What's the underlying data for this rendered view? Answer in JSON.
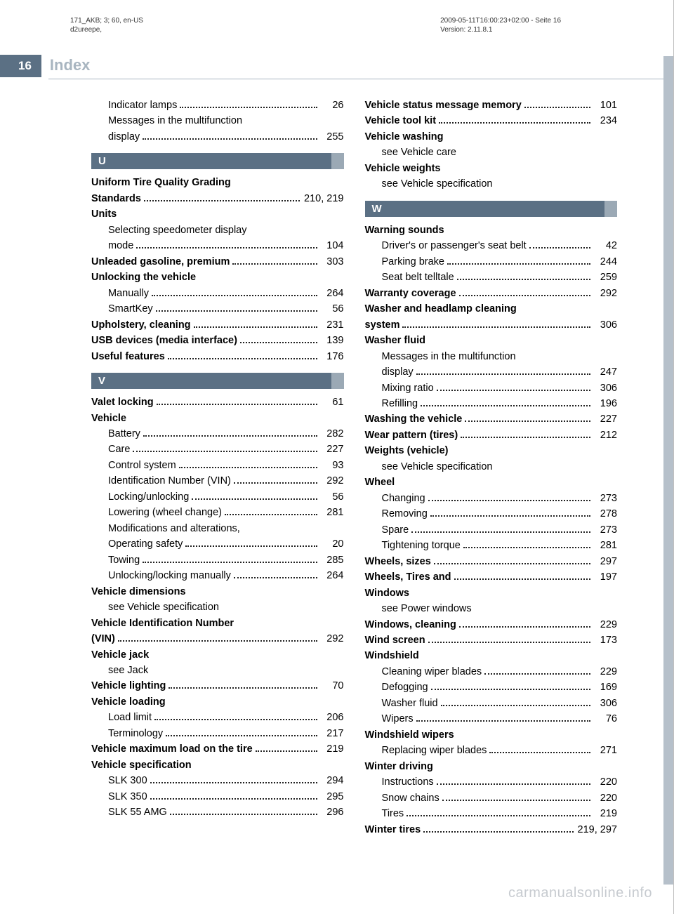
{
  "meta": {
    "left": "171_AKB; 3; 60, en-US\nd2ureepe,",
    "right": "2009-05-11T16:00:23+02:00 - Seite 16\nVersion: 2.11.8.1"
  },
  "pageNumber": "16",
  "pageTitle": "Index",
  "watermark": "carmanualsonline.info",
  "colors": {
    "barDark": "#5b7084",
    "barLight": "#9ba9b5",
    "titleGrey": "#a8b5c0",
    "tabGrey": "#b6c0ca"
  },
  "leftCol": [
    {
      "type": "entry",
      "sub": true,
      "label": "Indicator lamps",
      "page": "26"
    },
    {
      "type": "text",
      "sub": true,
      "label": "Messages in the multifunction"
    },
    {
      "type": "entry",
      "sub": true,
      "label": "display",
      "page": "255"
    },
    {
      "type": "section",
      "letter": "U"
    },
    {
      "type": "text",
      "bold": true,
      "label": "Uniform Tire Quality Grading"
    },
    {
      "type": "entry",
      "bold": true,
      "label": "Standards",
      "page": "210, 219"
    },
    {
      "type": "text",
      "bold": true,
      "label": "Units"
    },
    {
      "type": "text",
      "sub": true,
      "label": "Selecting speedometer display"
    },
    {
      "type": "entry",
      "sub": true,
      "label": "mode",
      "page": "104"
    },
    {
      "type": "entry",
      "bold": true,
      "label": "Unleaded gasoline, premium",
      "page": "303"
    },
    {
      "type": "text",
      "bold": true,
      "label": "Unlocking the vehicle"
    },
    {
      "type": "entry",
      "sub": true,
      "label": "Manually",
      "page": "264"
    },
    {
      "type": "entry",
      "sub": true,
      "label": "SmartKey",
      "page": "56"
    },
    {
      "type": "entry",
      "bold": true,
      "label": "Upholstery, cleaning",
      "page": "231"
    },
    {
      "type": "entry",
      "bold": true,
      "label": "USB devices (media interface)",
      "page": "139"
    },
    {
      "type": "entry",
      "bold": true,
      "label": "Useful features",
      "page": "176"
    },
    {
      "type": "section",
      "letter": "V"
    },
    {
      "type": "entry",
      "bold": true,
      "label": "Valet locking",
      "page": "61"
    },
    {
      "type": "text",
      "bold": true,
      "label": "Vehicle"
    },
    {
      "type": "entry",
      "sub": true,
      "label": "Battery",
      "page": "282"
    },
    {
      "type": "entry",
      "sub": true,
      "label": "Care",
      "page": "227"
    },
    {
      "type": "entry",
      "sub": true,
      "label": "Control system",
      "page": "93"
    },
    {
      "type": "entry",
      "sub": true,
      "label": "Identification Number (VIN)",
      "page": "292"
    },
    {
      "type": "entry",
      "sub": true,
      "label": "Locking/unlocking",
      "page": "56"
    },
    {
      "type": "entry",
      "sub": true,
      "label": "Lowering (wheel change)",
      "page": "281"
    },
    {
      "type": "text",
      "sub": true,
      "label": "Modifications and alterations,"
    },
    {
      "type": "entry",
      "sub": true,
      "label": "Operating safety",
      "page": "20"
    },
    {
      "type": "entry",
      "sub": true,
      "label": "Towing",
      "page": "285"
    },
    {
      "type": "entry",
      "sub": true,
      "label": "Unlocking/locking manually",
      "page": "264"
    },
    {
      "type": "text",
      "bold": true,
      "label": "Vehicle dimensions"
    },
    {
      "type": "text",
      "sub": true,
      "label": "see Vehicle specification"
    },
    {
      "type": "text",
      "bold": true,
      "label": "Vehicle Identification Number"
    },
    {
      "type": "entry",
      "bold": true,
      "label": "(VIN)",
      "page": "292"
    },
    {
      "type": "text",
      "bold": true,
      "label": "Vehicle jack"
    },
    {
      "type": "text",
      "sub": true,
      "label": "see Jack"
    },
    {
      "type": "entry",
      "bold": true,
      "label": "Vehicle lighting",
      "page": "70"
    },
    {
      "type": "text",
      "bold": true,
      "label": "Vehicle loading"
    },
    {
      "type": "entry",
      "sub": true,
      "label": "Load limit",
      "page": "206"
    },
    {
      "type": "entry",
      "sub": true,
      "label": "Terminology",
      "page": "217"
    },
    {
      "type": "entry",
      "bold": true,
      "label": "Vehicle maximum load on the tire",
      "page": "219",
      "tight": true
    },
    {
      "type": "text",
      "bold": true,
      "label": "Vehicle specification"
    },
    {
      "type": "entry",
      "sub": true,
      "label": "SLK 300",
      "page": "294"
    },
    {
      "type": "entry",
      "sub": true,
      "label": "SLK 350",
      "page": "295"
    },
    {
      "type": "entry",
      "sub": true,
      "label": "SLK 55 AMG",
      "page": "296"
    }
  ],
  "rightCol": [
    {
      "type": "entry",
      "bold": true,
      "label": "Vehicle status message memory",
      "page": "101",
      "tight": true
    },
    {
      "type": "entry",
      "bold": true,
      "label": "Vehicle tool kit",
      "page": "234"
    },
    {
      "type": "text",
      "bold": true,
      "label": "Vehicle washing"
    },
    {
      "type": "text",
      "sub": true,
      "label": "see Vehicle care"
    },
    {
      "type": "text",
      "bold": true,
      "label": "Vehicle weights"
    },
    {
      "type": "text",
      "sub": true,
      "label": "see Vehicle specification"
    },
    {
      "type": "section",
      "letter": "W"
    },
    {
      "type": "text",
      "bold": true,
      "label": "Warning sounds"
    },
    {
      "type": "entry",
      "sub": true,
      "label": "Driver's or passenger's seat belt",
      "page": "42",
      "tight": true
    },
    {
      "type": "entry",
      "sub": true,
      "label": "Parking brake",
      "page": "244"
    },
    {
      "type": "entry",
      "sub": true,
      "label": "Seat belt telltale",
      "page": "259"
    },
    {
      "type": "entry",
      "bold": true,
      "label": "Warranty coverage",
      "page": "292"
    },
    {
      "type": "text",
      "bold": true,
      "label": "Washer and headlamp cleaning"
    },
    {
      "type": "entry",
      "bold": true,
      "label": "system",
      "page": "306"
    },
    {
      "type": "text",
      "bold": true,
      "label": "Washer fluid"
    },
    {
      "type": "text",
      "sub": true,
      "label": "Messages in the multifunction"
    },
    {
      "type": "entry",
      "sub": true,
      "label": "display",
      "page": "247"
    },
    {
      "type": "entry",
      "sub": true,
      "label": "Mixing ratio",
      "page": "306"
    },
    {
      "type": "entry",
      "sub": true,
      "label": "Refilling",
      "page": "196"
    },
    {
      "type": "entry",
      "bold": true,
      "label": "Washing the vehicle",
      "page": "227"
    },
    {
      "type": "entry",
      "bold": true,
      "label": "Wear pattern (tires)",
      "page": "212"
    },
    {
      "type": "text",
      "bold": true,
      "label": "Weights (vehicle)"
    },
    {
      "type": "text",
      "sub": true,
      "label": "see Vehicle specification"
    },
    {
      "type": "text",
      "bold": true,
      "label": "Wheel"
    },
    {
      "type": "entry",
      "sub": true,
      "label": "Changing",
      "page": "273"
    },
    {
      "type": "entry",
      "sub": true,
      "label": "Removing",
      "page": "278"
    },
    {
      "type": "entry",
      "sub": true,
      "label": "Spare",
      "page": "273"
    },
    {
      "type": "entry",
      "sub": true,
      "label": "Tightening torque",
      "page": "281"
    },
    {
      "type": "entry",
      "bold": true,
      "label": "Wheels, sizes",
      "page": "297"
    },
    {
      "type": "entry",
      "bold": true,
      "label": "Wheels, Tires and",
      "page": "197"
    },
    {
      "type": "text",
      "bold": true,
      "label": "Windows"
    },
    {
      "type": "text",
      "sub": true,
      "label": "see Power windows"
    },
    {
      "type": "entry",
      "bold": true,
      "label": "Windows, cleaning",
      "page": "229"
    },
    {
      "type": "entry",
      "bold": true,
      "label": "Wind screen",
      "page": "173"
    },
    {
      "type": "text",
      "bold": true,
      "label": "Windshield"
    },
    {
      "type": "entry",
      "sub": true,
      "label": "Cleaning wiper blades",
      "page": "229"
    },
    {
      "type": "entry",
      "sub": true,
      "label": "Defogging",
      "page": "169"
    },
    {
      "type": "entry",
      "sub": true,
      "label": "Washer fluid",
      "page": "306"
    },
    {
      "type": "entry",
      "sub": true,
      "label": "Wipers",
      "page": "76"
    },
    {
      "type": "text",
      "bold": true,
      "label": "Windshield wipers"
    },
    {
      "type": "entry",
      "sub": true,
      "label": "Replacing wiper blades",
      "page": "271"
    },
    {
      "type": "text",
      "bold": true,
      "label": "Winter driving"
    },
    {
      "type": "entry",
      "sub": true,
      "label": "Instructions",
      "page": "220"
    },
    {
      "type": "entry",
      "sub": true,
      "label": "Snow chains",
      "page": "220"
    },
    {
      "type": "entry",
      "sub": true,
      "label": "Tires",
      "page": "219"
    },
    {
      "type": "entry",
      "bold": true,
      "label": "Winter tires",
      "page": "219, 297"
    }
  ]
}
